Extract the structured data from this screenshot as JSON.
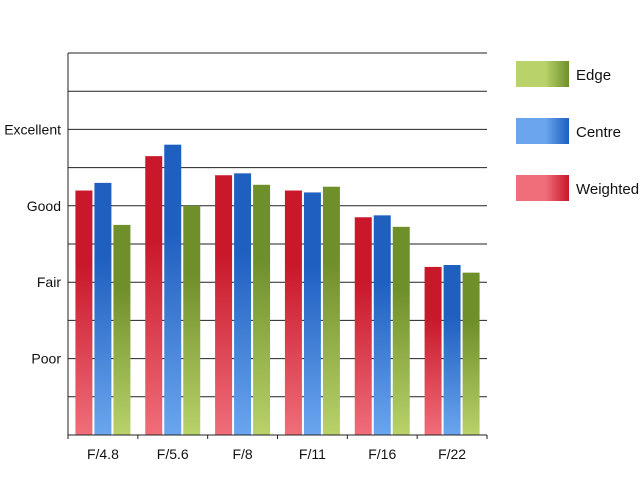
{
  "chart_data": {
    "type": "bar",
    "categories": [
      "F/4.8",
      "F/5.6",
      "F/8",
      "F/11",
      "F/16",
      "F/22"
    ],
    "y_ticks": [
      {
        "value": 2,
        "label": "Poor"
      },
      {
        "value": 4,
        "label": "Fair"
      },
      {
        "value": 6,
        "label": "Good"
      },
      {
        "value": 8,
        "label": "Excellent"
      }
    ],
    "ylim": [
      0,
      10
    ],
    "grid": true,
    "legend_position": "right",
    "series": [
      {
        "name": "Weighted",
        "color": "#c8182a",
        "light": "#ef6e7a",
        "values": [
          6.4,
          7.3,
          6.8,
          6.4,
          5.7,
          4.4
        ]
      },
      {
        "name": "Centre",
        "color": "#1f5fc0",
        "light": "#6aa5ee",
        "values": [
          6.6,
          7.6,
          6.85,
          6.35,
          5.75,
          4.45
        ]
      },
      {
        "name": "Edge",
        "color": "#6f8f2a",
        "light": "#b9d26a",
        "values": [
          5.5,
          6.0,
          6.55,
          6.5,
          5.45,
          4.25
        ]
      }
    ],
    "legend_order": [
      "Edge",
      "Centre",
      "Weighted"
    ]
  }
}
